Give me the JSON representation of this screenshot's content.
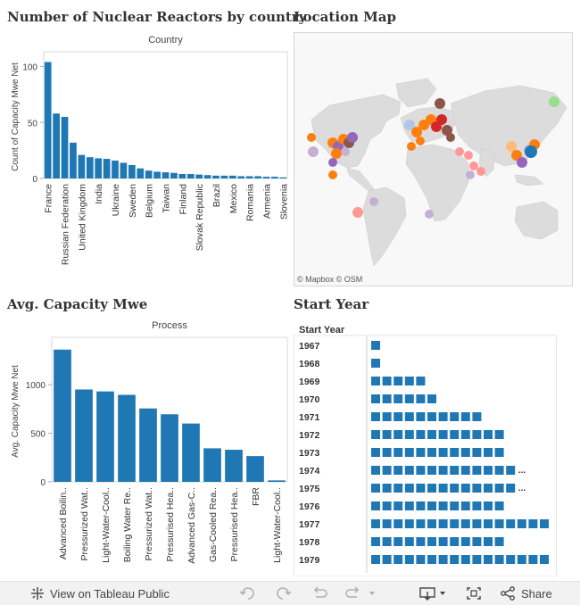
{
  "titles": {
    "reactors": "Number of Nuclear Reactors by country",
    "map": "Location Map",
    "capacity": "Avg. Capacity Mwe",
    "start_year": "Start Year"
  },
  "map": {
    "attribution": "© Mapbox  © OSM"
  },
  "toolbar": {
    "view_label": "View on Tableau Public",
    "share_label": "Share",
    "icons": [
      "tableau-icon",
      "undo-icon",
      "redo-icon",
      "revert-icon",
      "refresh-icon",
      "download-icon",
      "fullscreen-icon",
      "share-icon"
    ]
  },
  "chart_data": [
    {
      "type": "bar",
      "header": "Country",
      "ylabel": "Count of Capacity Mwe Net",
      "ylim": [
        0,
        110
      ],
      "yticks": [
        0,
        50,
        100
      ],
      "categories": [
        "France",
        "",
        "Russian Federation",
        "",
        "United Kingdom",
        "",
        "India",
        "",
        "Ukraine",
        "",
        "Sweden",
        "",
        "Belgium",
        "",
        "Taiwan",
        "",
        "Finland",
        "",
        "Slovak Republic",
        "",
        "Brazil",
        "",
        "Mexico",
        "",
        "Romania",
        "",
        "Armenia",
        "",
        "Slovenia"
      ],
      "values": [
        104,
        58,
        55,
        32,
        21,
        19,
        18,
        17.5,
        16,
        14,
        12,
        9,
        7,
        6,
        5.5,
        5,
        4,
        4,
        3.5,
        3,
        2.5,
        2.5,
        2.5,
        2,
        2,
        2,
        1.5,
        1.5,
        1
      ],
      "color": "#1f77b4"
    },
    {
      "type": "bar",
      "header": "Process",
      "ylabel": "Avg. Capacity Mwe Net",
      "ylim": [
        0,
        1450
      ],
      "yticks": [
        0,
        500,
        1000
      ],
      "categories": [
        "Advanced Boilin..",
        "Pressurized Wat..",
        "Light-Water-Cool..",
        "Boiling Water Re..",
        "Pressurized Wat..",
        "Pressurised Hea..",
        "Advanced Gas-C..",
        "Gas-Cooled Rea..",
        "Pressurised Hea..",
        "FBR",
        "Light-Water-Cool.."
      ],
      "values": [
        1360,
        950,
        930,
        895,
        755,
        695,
        600,
        345,
        330,
        265,
        15
      ],
      "color": "#1f77b4"
    },
    {
      "type": "table",
      "header": "Start Year",
      "categories": [
        "1967",
        "1968",
        "1969",
        "1970",
        "1971",
        "1972",
        "1973",
        "1974",
        "1975",
        "1976",
        "1977",
        "1978",
        "1979"
      ],
      "values": [
        1,
        1,
        5,
        6,
        10,
        12,
        12,
        13,
        13,
        12,
        16,
        12,
        16
      ],
      "overflow": [
        false,
        false,
        false,
        false,
        false,
        false,
        false,
        true,
        true,
        false,
        false,
        false,
        false
      ],
      "overflow_mark": "...",
      "color": "#1f77b4"
    }
  ]
}
